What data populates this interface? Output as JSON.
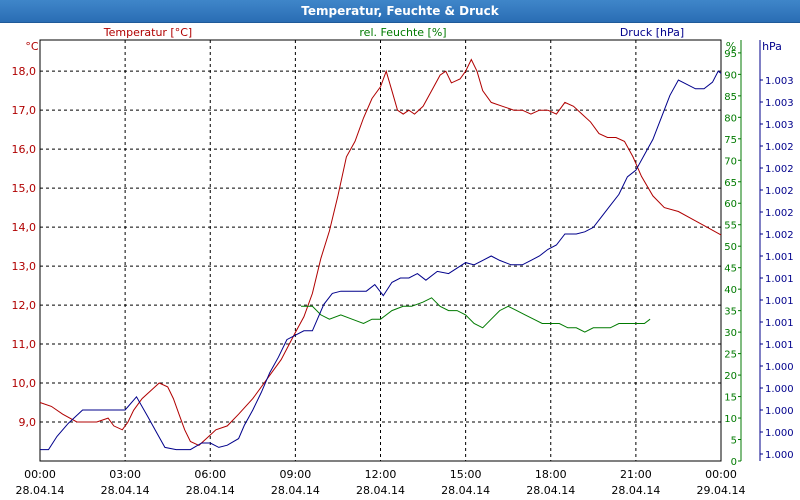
{
  "window": {
    "title": "Temperatur, Feuchte & Druck"
  },
  "chart_data": {
    "type": "line",
    "title": "Temperatur, Feuchte & Druck",
    "x_ticks": [
      {
        "time": "00:00",
        "date": "28.04.14"
      },
      {
        "time": "03:00",
        "date": "28.04.14"
      },
      {
        "time": "06:00",
        "date": "28.04.14"
      },
      {
        "time": "09:00",
        "date": "28.04.14"
      },
      {
        "time": "12:00",
        "date": "28.04.14"
      },
      {
        "time": "15:00",
        "date": "28.04.14"
      },
      {
        "time": "18:00",
        "date": "28.04.14"
      },
      {
        "time": "21:00",
        "date": "28.04.14"
      },
      {
        "time": "00:00",
        "date": "29.04.14"
      }
    ],
    "x_range_hours": [
      0,
      24
    ],
    "grid": true,
    "axes": {
      "temperature": {
        "unit": "°C",
        "label": "Temperatur [°C]",
        "range": [
          8.0,
          18.8
        ],
        "color": "#b00000",
        "ticks": [
          "9,0",
          "10,0",
          "11,0",
          "12,0",
          "13,0",
          "14,0",
          "15,0",
          "16,0",
          "17,0",
          "18,0"
        ]
      },
      "humidity": {
        "unit": "%",
        "label": "rel. Feuchte [%]",
        "range": [
          0,
          98
        ],
        "color": "#007a00",
        "ticks": [
          "0",
          "5",
          "10",
          "15",
          "20",
          "25",
          "30",
          "35",
          "40",
          "45",
          "50",
          "55",
          "60",
          "65",
          "70",
          "75",
          "80",
          "85",
          "90",
          "95"
        ]
      },
      "pressure": {
        "unit": "hPa",
        "label": "Druck [hPa]",
        "color": "#00008b",
        "ticks": [
          "1.000",
          "1.000",
          "1.000",
          "1.000",
          "1.000",
          "1.001",
          "1.001",
          "1.001",
          "1.001",
          "1.001",
          "1.002",
          "1.002",
          "1.002",
          "1.002",
          "1.002",
          "1.003",
          "1.003",
          "1.003"
        ]
      }
    },
    "series": [
      {
        "name": "Temperatur [°C]",
        "axis": "temperature",
        "color": "#b00000",
        "points": [
          [
            0,
            9.5
          ],
          [
            0.4,
            9.4
          ],
          [
            0.8,
            9.2
          ],
          [
            1.3,
            9.0
          ],
          [
            2.0,
            9.0
          ],
          [
            2.4,
            9.1
          ],
          [
            2.6,
            8.9
          ],
          [
            2.9,
            8.8
          ],
          [
            3.1,
            9.0
          ],
          [
            3.3,
            9.3
          ],
          [
            3.6,
            9.6
          ],
          [
            3.9,
            9.8
          ],
          [
            4.2,
            10.0
          ],
          [
            4.5,
            9.9
          ],
          [
            4.7,
            9.6
          ],
          [
            4.9,
            9.2
          ],
          [
            5.1,
            8.8
          ],
          [
            5.3,
            8.5
          ],
          [
            5.6,
            8.4
          ],
          [
            5.9,
            8.6
          ],
          [
            6.2,
            8.8
          ],
          [
            6.6,
            8.9
          ],
          [
            7.0,
            9.2
          ],
          [
            7.5,
            9.6
          ],
          [
            8.0,
            10.1
          ],
          [
            8.5,
            10.6
          ],
          [
            9.0,
            11.3
          ],
          [
            9.3,
            11.7
          ],
          [
            9.6,
            12.3
          ],
          [
            9.9,
            13.2
          ],
          [
            10.2,
            13.9
          ],
          [
            10.5,
            14.8
          ],
          [
            10.8,
            15.8
          ],
          [
            11.1,
            16.2
          ],
          [
            11.4,
            16.8
          ],
          [
            11.7,
            17.3
          ],
          [
            12.0,
            17.6
          ],
          [
            12.2,
            18.0
          ],
          [
            12.4,
            17.5
          ],
          [
            12.6,
            17.0
          ],
          [
            12.8,
            16.9
          ],
          [
            13.0,
            17.0
          ],
          [
            13.2,
            16.9
          ],
          [
            13.5,
            17.1
          ],
          [
            13.8,
            17.5
          ],
          [
            14.1,
            17.9
          ],
          [
            14.3,
            18.0
          ],
          [
            14.5,
            17.7
          ],
          [
            14.8,
            17.8
          ],
          [
            15.0,
            18.0
          ],
          [
            15.2,
            18.3
          ],
          [
            15.4,
            18.0
          ],
          [
            15.6,
            17.5
          ],
          [
            15.9,
            17.2
          ],
          [
            16.3,
            17.1
          ],
          [
            16.7,
            17.0
          ],
          [
            17.0,
            17.0
          ],
          [
            17.3,
            16.9
          ],
          [
            17.6,
            17.0
          ],
          [
            17.9,
            17.0
          ],
          [
            18.2,
            16.9
          ],
          [
            18.5,
            17.2
          ],
          [
            18.8,
            17.1
          ],
          [
            19.1,
            16.9
          ],
          [
            19.4,
            16.7
          ],
          [
            19.7,
            16.4
          ],
          [
            20.0,
            16.3
          ],
          [
            20.3,
            16.3
          ],
          [
            20.6,
            16.2
          ],
          [
            20.9,
            15.8
          ],
          [
            21.2,
            15.3
          ],
          [
            21.6,
            14.8
          ],
          [
            22.0,
            14.5
          ],
          [
            22.5,
            14.4
          ],
          [
            23.0,
            14.2
          ],
          [
            23.5,
            14.0
          ],
          [
            24.0,
            13.8
          ]
        ]
      },
      {
        "name": "rel. Feuchte [%]",
        "axis": "humidity",
        "color": "#007a00",
        "points": [
          [
            9.2,
            36
          ],
          [
            9.6,
            36
          ],
          [
            9.9,
            34
          ],
          [
            10.2,
            33
          ],
          [
            10.6,
            34
          ],
          [
            11.0,
            33
          ],
          [
            11.4,
            32
          ],
          [
            11.7,
            33
          ],
          [
            12.0,
            33
          ],
          [
            12.4,
            35
          ],
          [
            12.8,
            36
          ],
          [
            13.1,
            36
          ],
          [
            13.5,
            37
          ],
          [
            13.8,
            38
          ],
          [
            14.1,
            36
          ],
          [
            14.4,
            35
          ],
          [
            14.7,
            35
          ],
          [
            15.0,
            34
          ],
          [
            15.3,
            32
          ],
          [
            15.6,
            31
          ],
          [
            15.9,
            33
          ],
          [
            16.2,
            35
          ],
          [
            16.5,
            36
          ],
          [
            16.8,
            35
          ],
          [
            17.1,
            34
          ],
          [
            17.4,
            33
          ],
          [
            17.7,
            32
          ],
          [
            18.0,
            32
          ],
          [
            18.3,
            32
          ],
          [
            18.6,
            31
          ],
          [
            18.9,
            31
          ],
          [
            19.2,
            30
          ],
          [
            19.5,
            31
          ],
          [
            19.8,
            31
          ],
          [
            20.1,
            31
          ],
          [
            20.4,
            32
          ],
          [
            20.7,
            32
          ],
          [
            21.0,
            32
          ],
          [
            21.3,
            32
          ],
          [
            21.5,
            33
          ]
        ]
      },
      {
        "name": "Druck [hPa]",
        "axis": "pressure",
        "color": "#00008b",
        "points": [
          [
            0,
            0.2
          ],
          [
            0.3,
            0.2
          ],
          [
            0.6,
            0.8
          ],
          [
            1.0,
            1.4
          ],
          [
            1.5,
            2.0
          ],
          [
            2.0,
            2.0
          ],
          [
            3.0,
            2.0
          ],
          [
            3.4,
            2.6
          ],
          [
            3.8,
            1.7
          ],
          [
            4.1,
            1.0
          ],
          [
            4.4,
            0.3
          ],
          [
            4.8,
            0.2
          ],
          [
            5.3,
            0.2
          ],
          [
            5.7,
            0.5
          ],
          [
            6.0,
            0.5
          ],
          [
            6.3,
            0.3
          ],
          [
            6.6,
            0.4
          ],
          [
            7.0,
            0.7
          ],
          [
            7.2,
            1.3
          ],
          [
            7.5,
            2.0
          ],
          [
            7.8,
            2.8
          ],
          [
            8.1,
            3.7
          ],
          [
            8.4,
            4.4
          ],
          [
            8.7,
            5.2
          ],
          [
            9.0,
            5.4
          ],
          [
            9.3,
            5.6
          ],
          [
            9.6,
            5.6
          ],
          [
            9.8,
            6.2
          ],
          [
            10.0,
            6.8
          ],
          [
            10.3,
            7.3
          ],
          [
            10.6,
            7.4
          ],
          [
            11.0,
            7.4
          ],
          [
            11.5,
            7.4
          ],
          [
            11.8,
            7.7
          ],
          [
            12.1,
            7.2
          ],
          [
            12.4,
            7.8
          ],
          [
            12.7,
            8.0
          ],
          [
            13.0,
            8.0
          ],
          [
            13.3,
            8.2
          ],
          [
            13.6,
            7.9
          ],
          [
            14.0,
            8.3
          ],
          [
            14.4,
            8.2
          ],
          [
            15.0,
            8.7
          ],
          [
            15.3,
            8.6
          ],
          [
            15.6,
            8.8
          ],
          [
            15.9,
            9.0
          ],
          [
            16.2,
            8.8
          ],
          [
            16.6,
            8.6
          ],
          [
            17.0,
            8.6
          ],
          [
            17.3,
            8.8
          ],
          [
            17.6,
            9.0
          ],
          [
            17.9,
            9.3
          ],
          [
            18.2,
            9.5
          ],
          [
            18.5,
            10.0
          ],
          [
            18.9,
            10.0
          ],
          [
            19.2,
            10.1
          ],
          [
            19.5,
            10.3
          ],
          [
            19.8,
            10.8
          ],
          [
            20.1,
            11.3
          ],
          [
            20.4,
            11.8
          ],
          [
            20.7,
            12.6
          ],
          [
            21.0,
            12.9
          ],
          [
            21.3,
            13.6
          ],
          [
            21.6,
            14.3
          ],
          [
            21.9,
            15.3
          ],
          [
            22.2,
            16.3
          ],
          [
            22.5,
            17.0
          ],
          [
            22.8,
            16.8
          ],
          [
            23.1,
            16.6
          ],
          [
            23.4,
            16.6
          ],
          [
            23.7,
            16.9
          ],
          [
            23.9,
            17.4
          ],
          [
            24.0,
            17.3
          ]
        ]
      }
    ]
  }
}
